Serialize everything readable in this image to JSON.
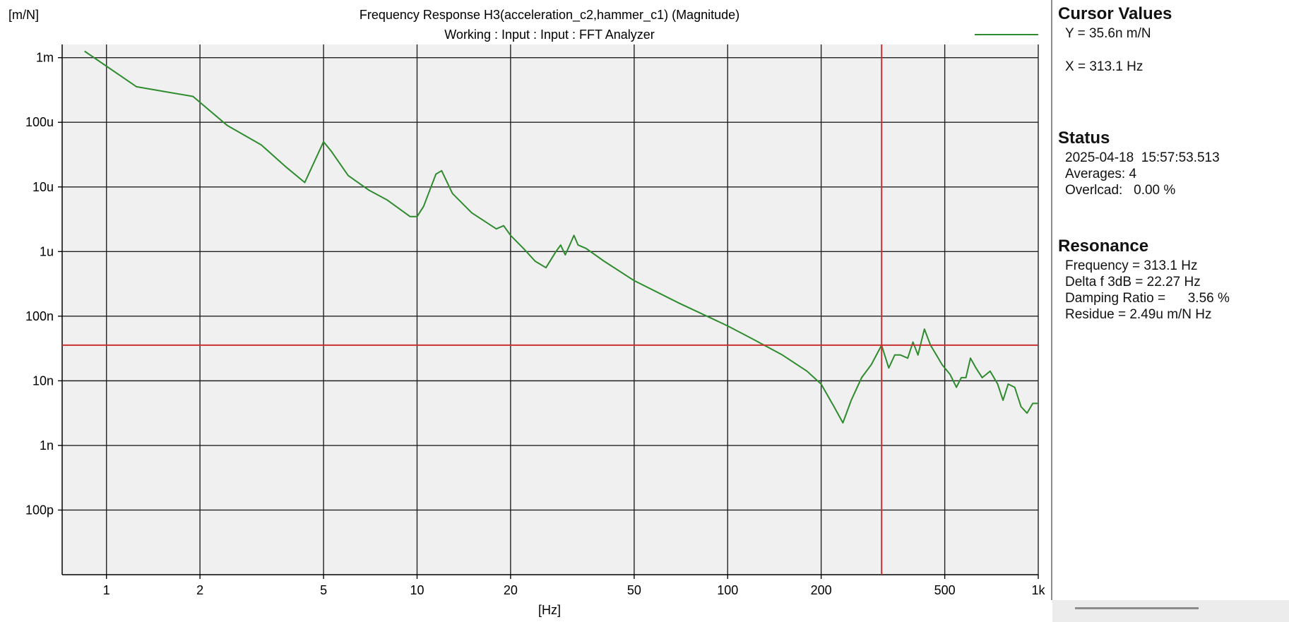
{
  "header": {
    "y_unit": "[m/N]",
    "title": "Frequency Response H3(acceleration_c2,hammer_c1) (Magnitude)",
    "subtitle": "Working : Input : Input : FFT Analyzer"
  },
  "chart_data": {
    "type": "line",
    "title": "Frequency Response H3(acceleration_c2,hammer_c1) (Magnitude)",
    "subtitle": "Working : Input : Input : FFT Analyzer",
    "xlabel": "[Hz]",
    "ylabel": "[m/N]",
    "x_scale": "log",
    "y_scale": "log",
    "xlim": [
      0.72,
      1000
    ],
    "ylim": [
      1e-11,
      0.0016
    ],
    "x_ticks": [
      {
        "value": 1,
        "label": "1"
      },
      {
        "value": 2,
        "label": "2"
      },
      {
        "value": 5,
        "label": "5"
      },
      {
        "value": 10,
        "label": "10"
      },
      {
        "value": 20,
        "label": "20"
      },
      {
        "value": 50,
        "label": "50"
      },
      {
        "value": 100,
        "label": "100"
      },
      {
        "value": 200,
        "label": "200"
      },
      {
        "value": 500,
        "label": "500"
      },
      {
        "value": 1000,
        "label": "1k"
      }
    ],
    "y_ticks": [
      {
        "value": 0.001,
        "label": "1m"
      },
      {
        "value": 0.0001,
        "label": "100u"
      },
      {
        "value": 1e-05,
        "label": "10u"
      },
      {
        "value": 1e-06,
        "label": "1u"
      },
      {
        "value": 1e-07,
        "label": "100n"
      },
      {
        "value": 1e-08,
        "label": "10n"
      },
      {
        "value": 1e-09,
        "label": "1n"
      },
      {
        "value": 1e-10,
        "label": "100p"
      }
    ],
    "grid": true,
    "legend": "top-right",
    "series": [
      {
        "color": "#2e8b2e",
        "x": [
          0.85,
          1.25,
          1.9,
          2.45,
          3.15,
          3.8,
          4.35,
          5.0,
          5.3,
          6.0,
          7.0,
          8.0,
          9.5,
          10.0,
          10.5,
          11.5,
          12.0,
          13.0,
          15.0,
          18.0,
          19.0,
          20.0,
          22.0,
          24.0,
          26.0,
          28.0,
          29.0,
          30.0,
          31.0,
          32.0,
          33.0,
          35.0,
          40.0,
          50.0,
          70.0,
          100.0,
          120.0,
          150.0,
          180.0,
          200.0,
          220.0,
          235.0,
          250.0,
          270.0,
          290.0,
          313.1,
          330.0,
          345.0,
          360.0,
          380.0,
          395.0,
          410.0,
          430.0,
          450.0,
          470.0,
          490.0,
          520.0,
          545.0,
          565.0,
          585.0,
          605.0,
          630.0,
          660.0,
          700.0,
          740.0,
          770.0,
          800.0,
          840.0,
          880.0,
          920.0,
          960.0,
          1000.0
        ],
        "y": [
          0.00126,
          0.000355,
          0.000251,
          8.91e-05,
          4.47e-05,
          2e-05,
          1.17e-05,
          5.01e-05,
          3.55e-05,
          1.5e-05,
          8.91e-06,
          6.3e-06,
          3.47e-06,
          3.47e-06,
          5.01e-06,
          1.58e-05,
          1.78e-05,
          7.9e-06,
          3.98e-06,
          2.24e-06,
          2.51e-06,
          1.78e-06,
          1.12e-06,
          7.08e-07,
          5.62e-07,
          1e-06,
          1.26e-06,
          8.91e-07,
          1.26e-06,
          1.78e-06,
          1.26e-06,
          1.12e-06,
          7.08e-07,
          3.55e-07,
          1.58e-07,
          7.08e-08,
          4.47e-08,
          2.51e-08,
          1.41e-08,
          8.91e-09,
          3.98e-09,
          2.24e-09,
          5.01e-09,
          1.12e-08,
          1.78e-08,
          3.56e-08,
          1.58e-08,
          2.51e-08,
          2.51e-08,
          2.24e-08,
          3.98e-08,
          2.51e-08,
          6.31e-08,
          3.55e-08,
          2.51e-08,
          1.78e-08,
          1.26e-08,
          7.94e-09,
          1.12e-08,
          1.12e-08,
          2.24e-08,
          1.58e-08,
          1.12e-08,
          1.41e-08,
          8.91e-09,
          5.01e-09,
          8.91e-09,
          7.94e-09,
          3.98e-09,
          3.16e-09,
          4.47e-09,
          4.47e-09
        ]
      }
    ],
    "cursor": {
      "x": 313.1,
      "y": 3.56e-08,
      "color": "#c83232"
    }
  },
  "side_panel": {
    "cursor_values": {
      "title": "Cursor Values",
      "y_line": "Y = 35.6n m/N",
      "x_line": "X = 313.1 Hz"
    },
    "status": {
      "title": "Status",
      "timestamp": "2025-04-18  15:57:53.513",
      "averages": "Averages: 4",
      "overload": "Overlcad:   0.00 %"
    },
    "resonance": {
      "title": "Resonance",
      "frequency": "Frequency = 313.1 Hz",
      "delta_f": "Delta f 3dB = 22.27 Hz",
      "damping": "Damping Ratio =      3.56 %",
      "residue": "Residue = 2.49u m/N Hz"
    }
  }
}
